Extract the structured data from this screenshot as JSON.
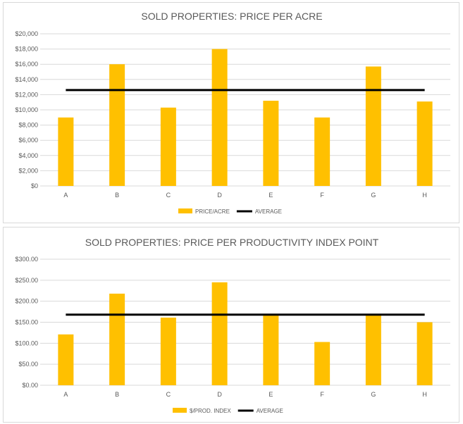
{
  "colors": {
    "bar": "#ffc000",
    "average": "#000000",
    "grid": "#d9d9d9",
    "text": "#595959"
  },
  "chart_data": [
    {
      "type": "bar",
      "title": "SOLD PROPERTIES: PRICE PER ACRE",
      "categories": [
        "A",
        "B",
        "C",
        "D",
        "E",
        "F",
        "G",
        "H"
      ],
      "series": [
        {
          "name": "PRICE/ACRE",
          "type": "bar",
          "values": [
            9000,
            16000,
            10300,
            18000,
            11200,
            9000,
            15700,
            11100
          ]
        },
        {
          "name": "AVERAGE",
          "type": "line",
          "values": [
            12600,
            12600,
            12600,
            12600,
            12600,
            12600,
            12600,
            12600
          ]
        }
      ],
      "ylim": [
        0,
        20000
      ],
      "yticks": [
        0,
        2000,
        4000,
        6000,
        8000,
        10000,
        12000,
        14000,
        16000,
        18000,
        20000
      ],
      "ytick_labels": [
        "$0",
        "$2,000",
        "$4,000",
        "$6,000",
        "$8,000",
        "$10,000",
        "$12,000",
        "$14,000",
        "$16,000",
        "$18,000",
        "$20,000"
      ],
      "grid": true,
      "legend": "bottom"
    },
    {
      "type": "bar",
      "title": "SOLD PROPERTIES: PRICE PER PRODUCTIVITY INDEX  POINT",
      "categories": [
        "A",
        "B",
        "C",
        "D",
        "E",
        "F",
        "G",
        "H"
      ],
      "series": [
        {
          "name": "$/PROD. INDEX",
          "type": "bar",
          "values": [
            121,
            218,
            161,
            245,
            167,
            103,
            167,
            150
          ]
        },
        {
          "name": "AVERAGE",
          "type": "line",
          "values": [
            168,
            168,
            168,
            168,
            168,
            168,
            168,
            168
          ]
        }
      ],
      "ylim": [
        0,
        300
      ],
      "yticks": [
        0,
        50,
        100,
        150,
        200,
        250,
        300
      ],
      "ytick_labels": [
        "$0.00",
        "$50.00",
        "$100.00",
        "$150.00",
        "$200.00",
        "$250.00",
        "$300.00"
      ],
      "grid": true,
      "legend": "bottom"
    }
  ]
}
